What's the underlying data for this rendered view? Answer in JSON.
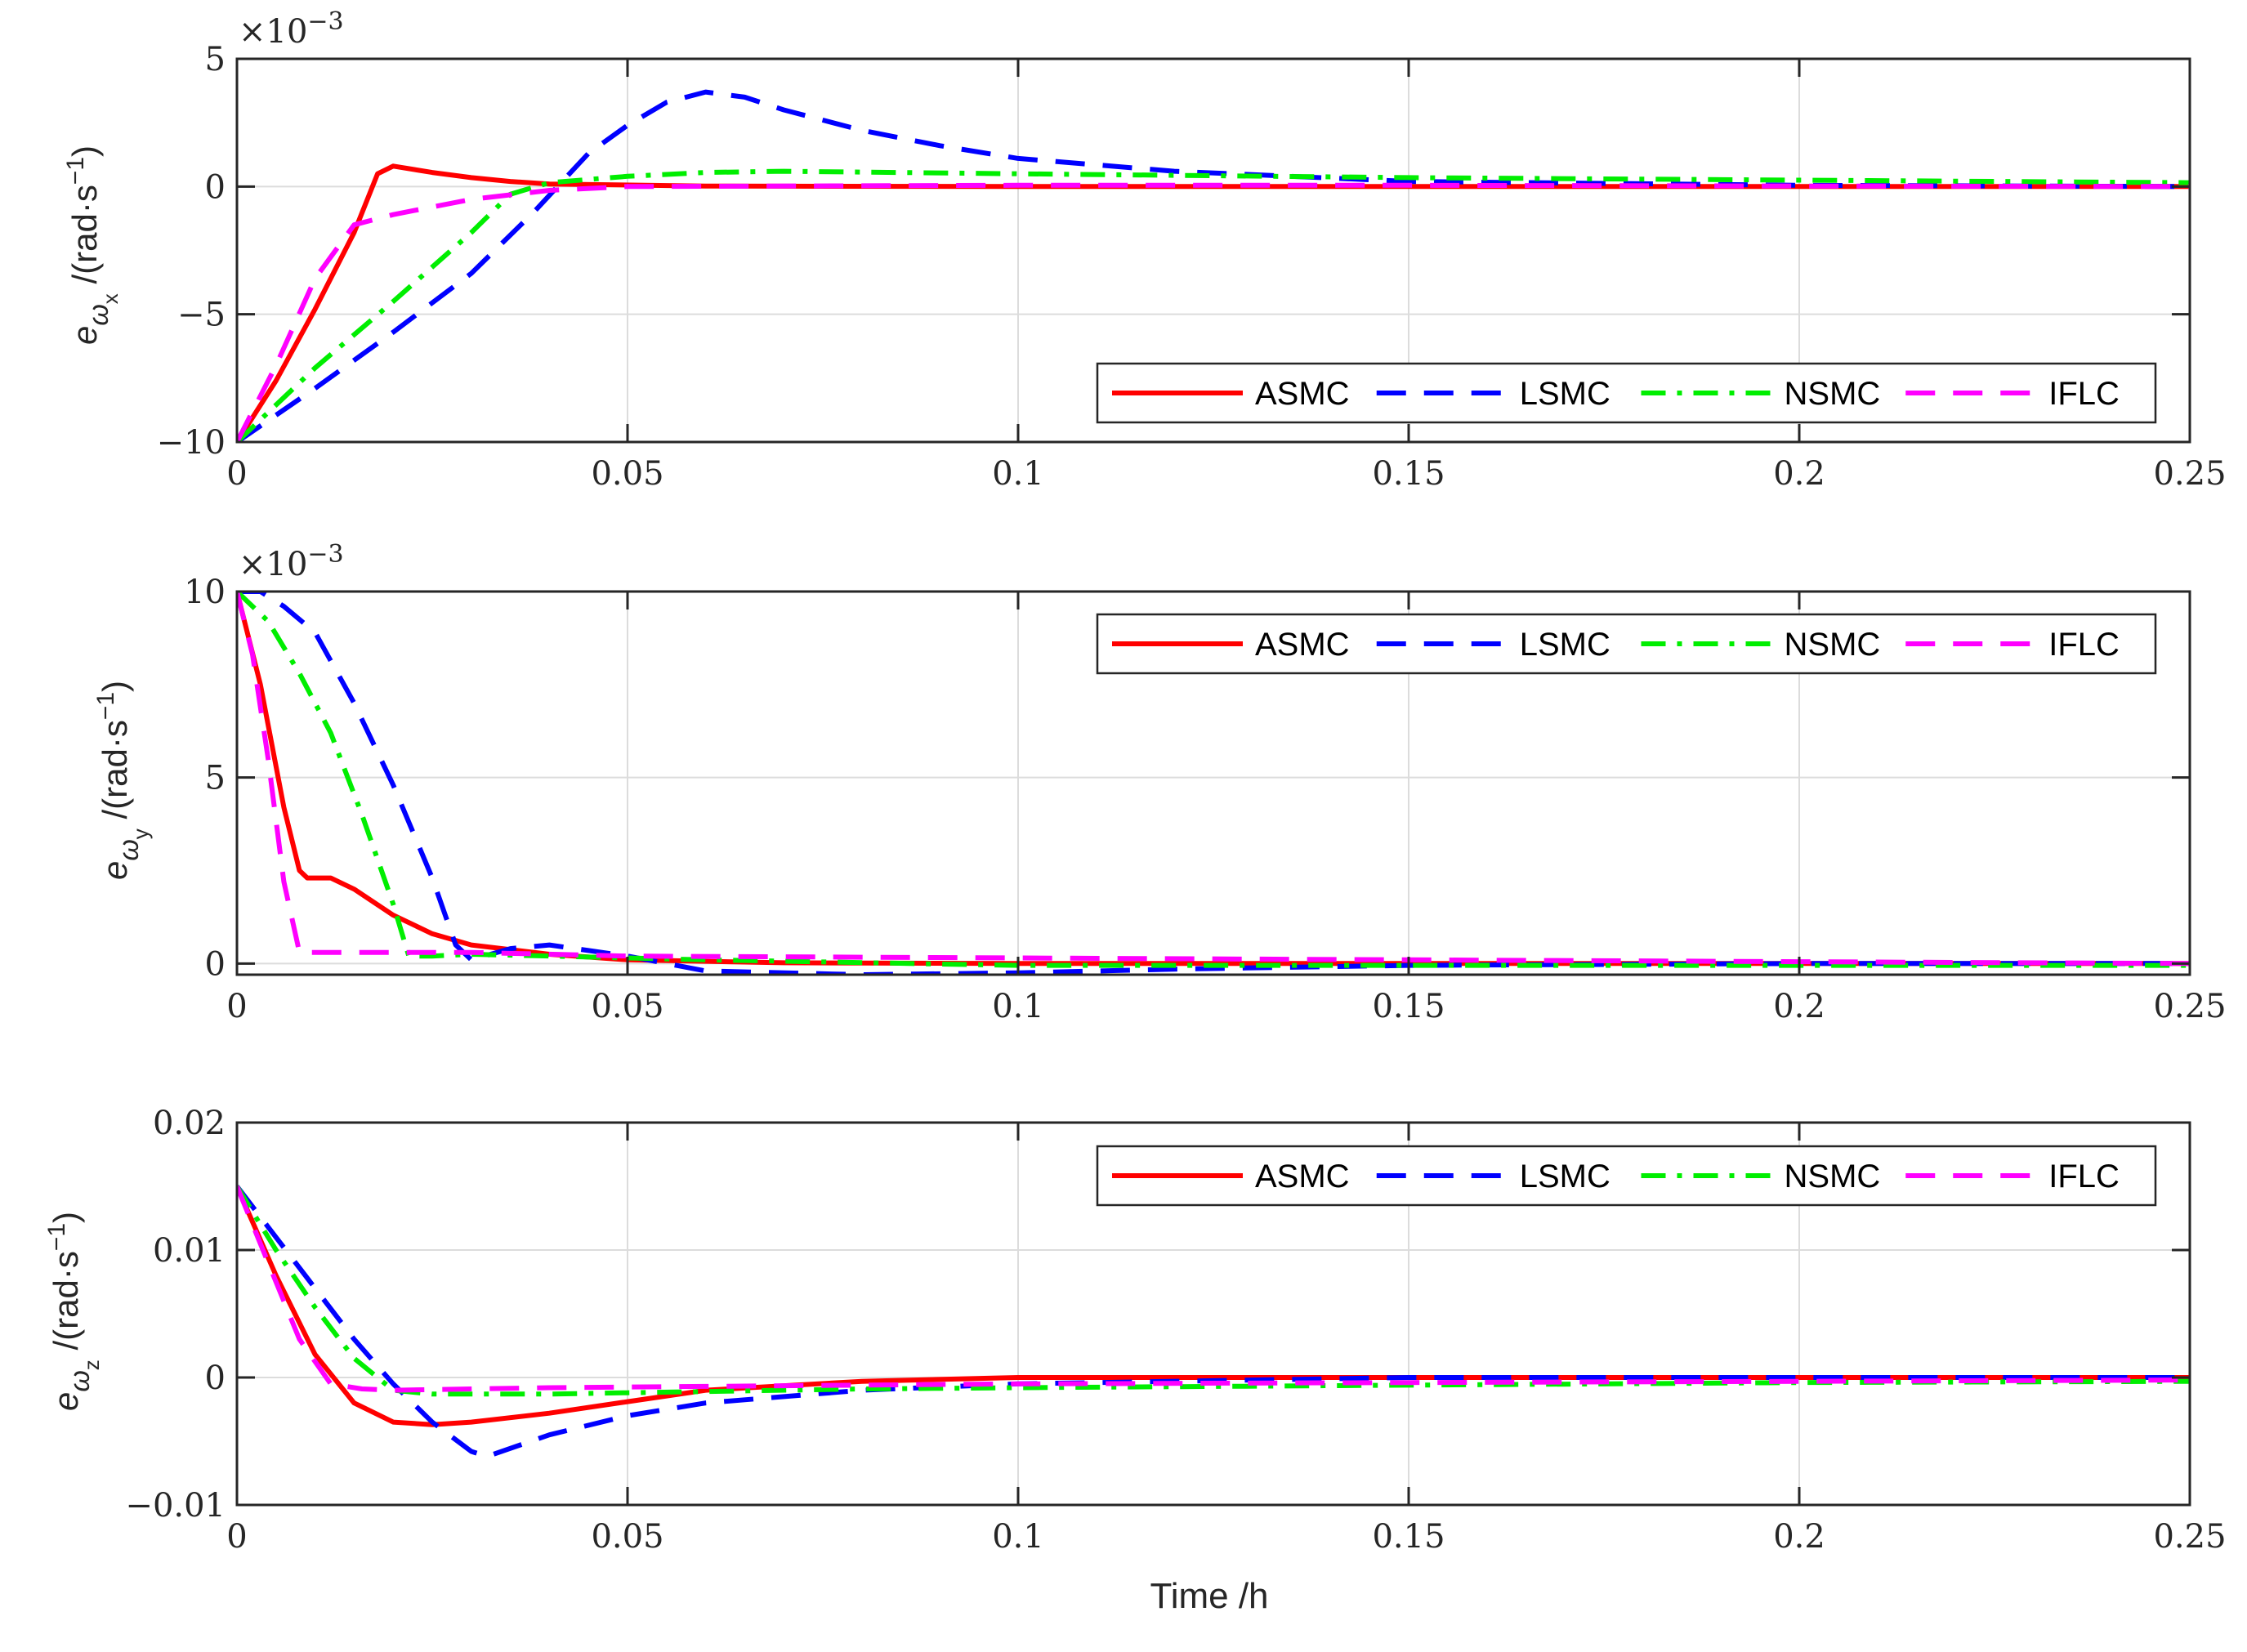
{
  "chart_data": [
    {
      "type": "line",
      "id": "wx",
      "ylabel": {
        "base": "e",
        "sub": "ω",
        "subsub": "x",
        "unit": "/(rad·s",
        "sup": "−1",
        "close": ")"
      },
      "exponent": {
        "base": "×10",
        "sup": "−3"
      },
      "xlim": [
        0,
        0.25
      ],
      "ylim": [
        -10,
        5
      ],
      "xticks": [
        0,
        0.05,
        0.1,
        0.15,
        0.2,
        0.25
      ],
      "xticklabels": [
        "0",
        "0.05",
        "0.1",
        "0.15",
        "0.2",
        "0.25"
      ],
      "yticks": [
        -10,
        -5,
        0,
        5
      ],
      "yticklabels": [
        "−10",
        "−5",
        "0",
        "5"
      ],
      "grid": true,
      "legend": {
        "placement": "bottom-right",
        "labels": [
          "ASMC",
          "LSMC",
          "NSMC",
          "IFLC"
        ]
      },
      "series": [
        {
          "name": "ASMC",
          "color": "#ff0000",
          "style": "solid",
          "x": [
            0,
            0.005,
            0.01,
            0.015,
            0.018,
            0.02,
            0.025,
            0.03,
            0.035,
            0.04,
            0.06,
            0.1,
            0.15,
            0.2,
            0.25
          ],
          "y": [
            -10,
            -7.6,
            -4.8,
            -1.8,
            0.5,
            0.8,
            0.55,
            0.35,
            0.2,
            0.1,
            0.02,
            0,
            0,
            0,
            0
          ]
        },
        {
          "name": "LSMC",
          "color": "#0000ff",
          "style": "dashed",
          "x": [
            0,
            0.01,
            0.02,
            0.03,
            0.038,
            0.045,
            0.05,
            0.055,
            0.06,
            0.065,
            0.07,
            0.08,
            0.09,
            0.1,
            0.12,
            0.15,
            0.2,
            0.25
          ],
          "y": [
            -10,
            -7.9,
            -5.7,
            -3.4,
            -1.0,
            1.3,
            2.4,
            3.3,
            3.7,
            3.5,
            3.0,
            2.2,
            1.6,
            1.1,
            0.6,
            0.2,
            0.05,
            0
          ]
        },
        {
          "name": "NSMC",
          "color": "#00ee00",
          "style": "dashdot",
          "x": [
            0,
            0.01,
            0.02,
            0.03,
            0.035,
            0.04,
            0.05,
            0.06,
            0.07,
            0.1,
            0.15,
            0.2,
            0.25
          ],
          "y": [
            -10,
            -7.1,
            -4.5,
            -1.8,
            -0.3,
            0.15,
            0.4,
            0.55,
            0.6,
            0.5,
            0.35,
            0.25,
            0.15
          ]
        },
        {
          "name": "IFLC",
          "color": "#ff00ff",
          "style": "dashed",
          "x": [
            0,
            0.005,
            0.01,
            0.015,
            0.02,
            0.025,
            0.03,
            0.04,
            0.05,
            0.1,
            0.15,
            0.2,
            0.25
          ],
          "y": [
            -10,
            -7.0,
            -3.6,
            -1.5,
            -1.1,
            -0.8,
            -0.5,
            -0.15,
            0,
            0.05,
            0.05,
            0.02,
            0
          ]
        }
      ]
    },
    {
      "type": "line",
      "id": "wy",
      "ylabel": {
        "base": "e",
        "sub": "ω",
        "subsub": "y",
        "unit": "/(rad·s",
        "sup": "−1",
        "close": ")"
      },
      "exponent": {
        "base": "×10",
        "sup": "−3"
      },
      "xlim": [
        0,
        0.25
      ],
      "ylim": [
        -0.3,
        10
      ],
      "xticks": [
        0,
        0.05,
        0.1,
        0.15,
        0.2,
        0.25
      ],
      "xticklabels": [
        "0",
        "0.05",
        "0.1",
        "0.15",
        "0.2",
        "0.25"
      ],
      "yticks": [
        0,
        5,
        10
      ],
      "yticklabels": [
        "0",
        "5",
        "10"
      ],
      "grid": true,
      "legend": {
        "placement": "top-right",
        "labels": [
          "ASMC",
          "LSMC",
          "NSMC",
          "IFLC"
        ]
      },
      "series": [
        {
          "name": "ASMC",
          "color": "#ff0000",
          "style": "solid",
          "x": [
            0,
            0.003,
            0.006,
            0.008,
            0.009,
            0.012,
            0.015,
            0.02,
            0.025,
            0.03,
            0.04,
            0.05,
            0.07,
            0.1,
            0.15,
            0.2,
            0.25
          ],
          "y": [
            10,
            7.5,
            4.2,
            2.5,
            2.3,
            2.3,
            2.0,
            1.3,
            0.8,
            0.5,
            0.25,
            0.1,
            0.02,
            0,
            0,
            0,
            0
          ]
        },
        {
          "name": "LSMC",
          "color": "#0000ff",
          "style": "dashed",
          "x": [
            0,
            0.003,
            0.006,
            0.01,
            0.015,
            0.02,
            0.025,
            0.028,
            0.03,
            0.035,
            0.04,
            0.045,
            0.05,
            0.06,
            0.08,
            0.1,
            0.12,
            0.15,
            0.2,
            0.25
          ],
          "y": [
            10,
            10,
            9.6,
            8.9,
            7.0,
            4.8,
            2.3,
            0.5,
            0.1,
            0.4,
            0.5,
            0.35,
            0.2,
            -0.2,
            -0.3,
            -0.25,
            -0.15,
            -0.05,
            0,
            0
          ]
        },
        {
          "name": "NSMC",
          "color": "#00ee00",
          "style": "dashdot",
          "x": [
            0,
            0.004,
            0.008,
            0.012,
            0.016,
            0.02,
            0.022,
            0.025,
            0.03,
            0.04,
            0.06,
            0.1,
            0.15,
            0.2,
            0.25
          ],
          "y": [
            10,
            9.2,
            7.8,
            6.2,
            4.0,
            1.6,
            0.2,
            0.2,
            0.25,
            0.2,
            0.1,
            -0.05,
            -0.05,
            -0.05,
            -0.05
          ]
        },
        {
          "name": "IFLC",
          "color": "#ff00ff",
          "style": "dashed",
          "x": [
            0,
            0.002,
            0.004,
            0.006,
            0.008,
            0.012,
            0.02,
            0.03,
            0.05,
            0.1,
            0.15,
            0.2,
            0.25
          ],
          "y": [
            10,
            8.3,
            5.5,
            2.2,
            0.3,
            0.3,
            0.3,
            0.3,
            0.2,
            0.15,
            0.1,
            0.05,
            0
          ]
        }
      ]
    },
    {
      "type": "line",
      "id": "wz",
      "ylabel": {
        "base": "e",
        "sub": "ω",
        "subsub": "z",
        "unit": "/(rad·s",
        "sup": "−1",
        "close": ")"
      },
      "xlabel": "Time /h",
      "xlim": [
        0,
        0.25
      ],
      "ylim": [
        -0.01,
        0.02
      ],
      "xticks": [
        0,
        0.05,
        0.1,
        0.15,
        0.2,
        0.25
      ],
      "xticklabels": [
        "0",
        "0.05",
        "0.1",
        "0.15",
        "0.2",
        "0.25"
      ],
      "yticks": [
        -0.01,
        0,
        0.01,
        0.02
      ],
      "yticklabels": [
        "−0.01",
        "0",
        "0.01",
        "0.02"
      ],
      "grid": true,
      "legend": {
        "placement": "top-right",
        "labels": [
          "ASMC",
          "LSMC",
          "NSMC",
          "IFLC"
        ]
      },
      "series": [
        {
          "name": "ASMC",
          "color": "#ff0000",
          "style": "solid",
          "x": [
            0,
            0.005,
            0.01,
            0.015,
            0.02,
            0.025,
            0.03,
            0.04,
            0.05,
            0.06,
            0.08,
            0.1,
            0.15,
            0.2,
            0.25
          ],
          "y": [
            0.015,
            0.008,
            0.0018,
            -0.002,
            -0.0035,
            -0.0037,
            -0.0035,
            -0.0028,
            -0.0019,
            -0.001,
            -0.0003,
            0,
            0,
            0,
            0
          ]
        },
        {
          "name": "LSMC",
          "color": "#0000ff",
          "style": "dashed",
          "x": [
            0,
            0.005,
            0.01,
            0.015,
            0.02,
            0.025,
            0.03,
            0.032,
            0.04,
            0.05,
            0.06,
            0.08,
            0.1,
            0.15,
            0.2,
            0.25
          ],
          "y": [
            0.015,
            0.011,
            0.007,
            0.003,
            -0.0005,
            -0.0035,
            -0.0058,
            -0.0062,
            -0.0045,
            -0.003,
            -0.002,
            -0.001,
            -0.0005,
            0,
            0,
            0
          ]
        },
        {
          "name": "NSMC",
          "color": "#00ee00",
          "style": "dashdot",
          "x": [
            0,
            0.005,
            0.01,
            0.015,
            0.02,
            0.025,
            0.03,
            0.04,
            0.05,
            0.06,
            0.08,
            0.1,
            0.15,
            0.2,
            0.25
          ],
          "y": [
            0.015,
            0.01,
            0.0055,
            0.0015,
            -0.001,
            -0.0013,
            -0.0013,
            -0.0013,
            -0.0012,
            -0.0011,
            -0.0009,
            -0.0008,
            -0.0006,
            -0.0004,
            -0.0003
          ]
        },
        {
          "name": "IFLC",
          "color": "#ff00ff",
          "style": "dashed",
          "x": [
            0,
            0.004,
            0.008,
            0.012,
            0.016,
            0.02,
            0.03,
            0.04,
            0.06,
            0.1,
            0.15,
            0.2,
            0.25
          ],
          "y": [
            0.015,
            0.009,
            0.003,
            -0.0005,
            -0.0009,
            -0.001,
            -0.0009,
            -0.0008,
            -0.0007,
            -0.0005,
            -0.0004,
            -0.0003,
            -0.0002
          ]
        }
      ]
    }
  ]
}
